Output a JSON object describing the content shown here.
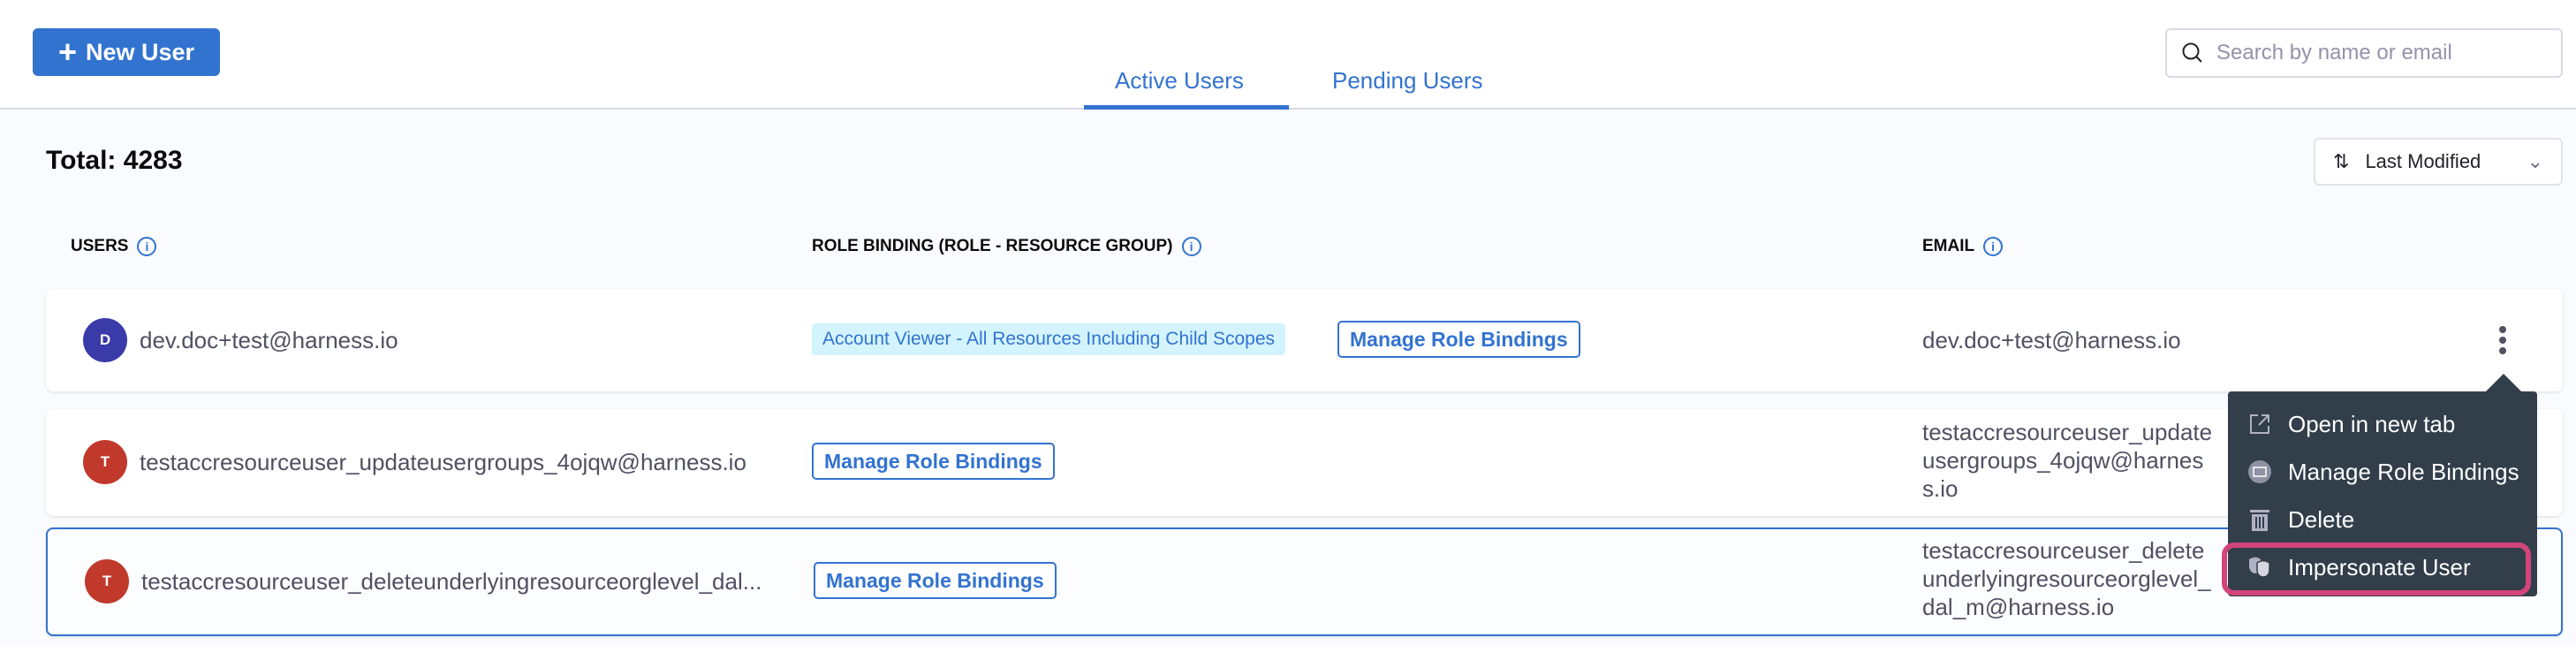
{
  "header": {
    "new_user_label": "New User",
    "tabs": [
      {
        "label": "Active Users",
        "active": true
      },
      {
        "label": "Pending Users",
        "active": false
      }
    ],
    "search_placeholder": "Search by name or email"
  },
  "summary": {
    "total_label": "Total: 4283"
  },
  "sort": {
    "label": "Last Modified"
  },
  "table": {
    "columns": [
      "USERS",
      "ROLE BINDING (ROLE - RESOURCE GROUP)",
      "EMAIL"
    ],
    "rows": [
      {
        "initial": "D",
        "avatar_color": "#3a3aa8",
        "name": "dev.doc+test@harness.io",
        "role_tag": "Account Viewer - All Resources Including Child Scopes",
        "manage_label": "Manage Role Bindings",
        "email": "dev.doc+test@harness.io"
      },
      {
        "initial": "T",
        "avatar_color": "#c0392b",
        "name": "testaccresourceuser_updateusergroups_4ojqw@harness.io",
        "manage_label": "Manage Role Bindings",
        "email": "testaccresourceuser_updateusergroups_4ojqw@harness.io"
      },
      {
        "initial": "T",
        "avatar_color": "#c0392b",
        "name": "testaccresourceuser_deleteunderlyingresourceorglevel_dal...",
        "manage_label": "Manage Role Bindings",
        "email": "testaccresourceuser_deleteunderlyingresourceorglevel_dal_m@harness.io"
      }
    ]
  },
  "context_menu": {
    "items": [
      {
        "label": "Open in new tab",
        "icon": "external-link-icon"
      },
      {
        "label": "Manage Role Bindings",
        "icon": "role-binding-icon"
      },
      {
        "label": "Delete",
        "icon": "trash-icon"
      },
      {
        "label": "Impersonate User",
        "icon": "mask-icon",
        "highlighted": true
      }
    ],
    "highlight_color": "#d1457a"
  },
  "colors": {
    "accent": "#3373d0",
    "menu_bg": "#333e4b"
  }
}
